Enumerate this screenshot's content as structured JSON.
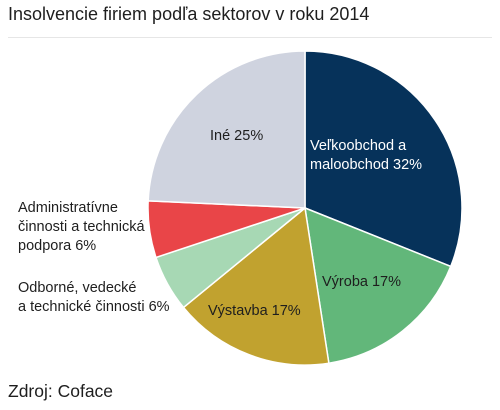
{
  "chart_data": {
    "type": "pie",
    "title": "Insolvencie firiem podľa sektorov v roku 2014",
    "source": "Zdroj: Coface",
    "slices": [
      {
        "lines": [
          "Veľkoobchod a",
          "maloobchod 32%"
        ],
        "value": 32,
        "color": "#06325a",
        "label_color": "#ffffff"
      },
      {
        "lines": [
          "Výroba 17%"
        ],
        "value": 17,
        "color": "#62b77a",
        "label_color": "#1e1e1e"
      },
      {
        "lines": [
          "Výstavba 17%"
        ],
        "value": 17,
        "color": "#c1a22f",
        "label_color": "#1e1e1e"
      },
      {
        "lines": [
          "Odborné, vedecké",
          "a technické činnosti 6%"
        ],
        "value": 6,
        "color": "#a7d8b4",
        "label_color": "#1e1e1e"
      },
      {
        "lines": [
          "Administratívne",
          "činnosti a technická",
          "podpora 6%"
        ],
        "value": 6,
        "color": "#e94548",
        "label_color": "#1e1e1e"
      },
      {
        "lines": [
          "Iné 25%"
        ],
        "value": 25,
        "color": "#cfd3df",
        "label_color": "#1e1e1e"
      }
    ]
  }
}
